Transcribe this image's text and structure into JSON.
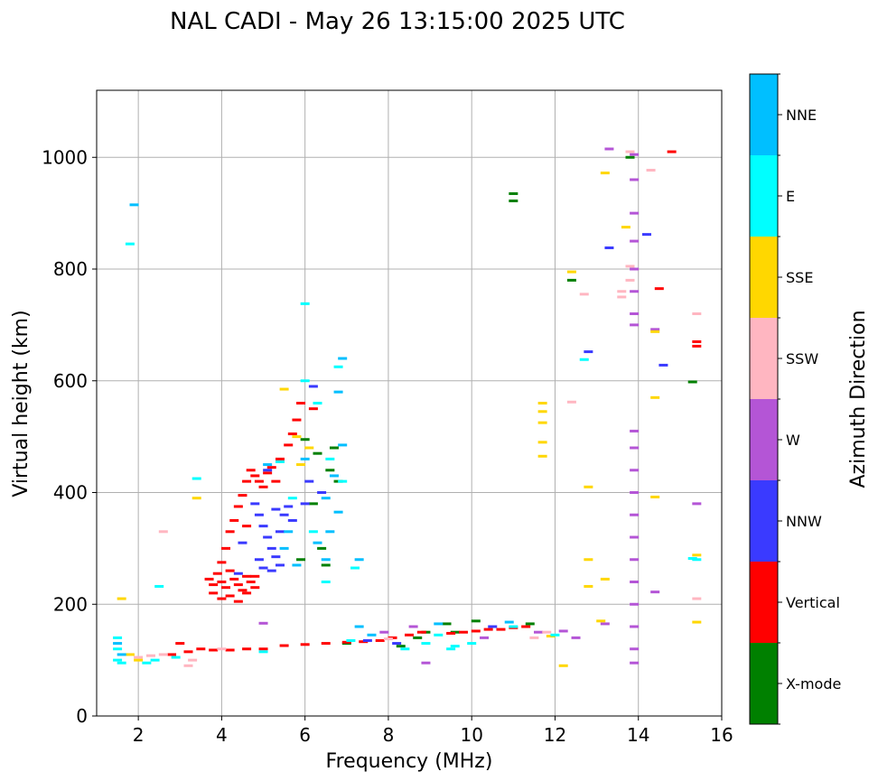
{
  "chart_data": {
    "type": "scatter",
    "title": "NAL CADI - May 26 13:15:00 2025 UTC",
    "xlabel": "Frequency (MHz)",
    "ylabel": "Virtual height (km)",
    "xlim": [
      1,
      16
    ],
    "ylim": [
      0,
      1120
    ],
    "xticks": [
      2,
      4,
      6,
      8,
      10,
      12,
      14,
      16
    ],
    "yticks": [
      0,
      200,
      400,
      600,
      800,
      1000
    ],
    "grid": true,
    "colorbar": {
      "label": "Azimuth Direction",
      "categories": [
        {
          "name": "X-mode",
          "color": "#008000"
        },
        {
          "name": "Vertical",
          "color": "#ff0000"
        },
        {
          "name": "NNW",
          "color": "#3a3aff"
        },
        {
          "name": "W",
          "color": "#b455d6"
        },
        {
          "name": "SSW",
          "color": "#ffb6c1"
        },
        {
          "name": "SSE",
          "color": "#ffd700"
        },
        {
          "name": "E",
          "color": "#00ffff"
        },
        {
          "name": "NNE",
          "color": "#00bfff"
        }
      ]
    },
    "series": [
      {
        "name": "X-mode",
        "points": [
          [
            11.0,
            935
          ],
          [
            11.0,
            922
          ],
          [
            9.4,
            165
          ],
          [
            9.6,
            150
          ],
          [
            12.4,
            780
          ],
          [
            15.3,
            598
          ],
          [
            6.0,
            495
          ],
          [
            6.3,
            470
          ],
          [
            6.6,
            440
          ],
          [
            6.8,
            420
          ],
          [
            6.2,
            380
          ],
          [
            6.4,
            300
          ],
          [
            6.5,
            270
          ],
          [
            5.9,
            280
          ],
          [
            8.7,
            140
          ],
          [
            8.9,
            150
          ],
          [
            7.0,
            130
          ],
          [
            13.8,
            1000
          ],
          [
            6.7,
            480
          ],
          [
            10.1,
            170
          ],
          [
            11.4,
            165
          ],
          [
            8.3,
            125
          ]
        ]
      },
      {
        "name": "Vertical",
        "points": [
          [
            3.7,
            245
          ],
          [
            3.8,
            235
          ],
          [
            3.9,
            255
          ],
          [
            4.0,
            240
          ],
          [
            4.1,
            230
          ],
          [
            4.2,
            260
          ],
          [
            4.3,
            245
          ],
          [
            4.4,
            235
          ],
          [
            4.5,
            225
          ],
          [
            4.6,
            250
          ],
          [
            4.7,
            240
          ],
          [
            3.8,
            220
          ],
          [
            4.0,
            210
          ],
          [
            4.2,
            215
          ],
          [
            4.4,
            205
          ],
          [
            4.6,
            220
          ],
          [
            4.8,
            230
          ],
          [
            4.0,
            275
          ],
          [
            4.1,
            300
          ],
          [
            4.2,
            330
          ],
          [
            4.3,
            350
          ],
          [
            4.4,
            375
          ],
          [
            4.5,
            395
          ],
          [
            4.6,
            420
          ],
          [
            4.7,
            440
          ],
          [
            4.8,
            430
          ],
          [
            4.9,
            420
          ],
          [
            5.0,
            410
          ],
          [
            5.1,
            435
          ],
          [
            5.2,
            445
          ],
          [
            5.3,
            420
          ],
          [
            5.4,
            460
          ],
          [
            5.6,
            485
          ],
          [
            5.7,
            505
          ],
          [
            5.8,
            530
          ],
          [
            5.9,
            560
          ],
          [
            6.2,
            550
          ],
          [
            3.5,
            120
          ],
          [
            3.8,
            118
          ],
          [
            4.2,
            118
          ],
          [
            4.6,
            120
          ],
          [
            5.0,
            120
          ],
          [
            5.5,
            126
          ],
          [
            6.0,
            128
          ],
          [
            6.5,
            130
          ],
          [
            7.0,
            132
          ],
          [
            7.4,
            133
          ],
          [
            7.8,
            135
          ],
          [
            8.1,
            140
          ],
          [
            8.5,
            145
          ],
          [
            8.8,
            150
          ],
          [
            9.5,
            148
          ],
          [
            9.8,
            150
          ],
          [
            10.1,
            152
          ],
          [
            10.4,
            155
          ],
          [
            10.7,
            155
          ],
          [
            11.0,
            158
          ],
          [
            11.3,
            160
          ],
          [
            2.8,
            110
          ],
          [
            3.2,
            115
          ],
          [
            14.5,
            765
          ],
          [
            14.8,
            1010
          ],
          [
            15.4,
            670
          ],
          [
            15.4,
            662
          ],
          [
            3.0,
            130
          ],
          [
            4.8,
            250
          ],
          [
            4.6,
            340
          ]
        ]
      },
      {
        "name": "NNW",
        "points": [
          [
            4.8,
            380
          ],
          [
            4.9,
            360
          ],
          [
            5.0,
            340
          ],
          [
            5.1,
            320
          ],
          [
            5.2,
            300
          ],
          [
            5.3,
            285
          ],
          [
            5.4,
            330
          ],
          [
            5.5,
            360
          ],
          [
            5.6,
            375
          ],
          [
            5.7,
            350
          ],
          [
            4.9,
            280
          ],
          [
            5.0,
            265
          ],
          [
            5.2,
            260
          ],
          [
            5.4,
            270
          ],
          [
            6.2,
            590
          ],
          [
            6.0,
            380
          ],
          [
            6.4,
            400
          ],
          [
            13.3,
            838
          ],
          [
            12.8,
            652
          ],
          [
            14.6,
            628
          ],
          [
            14.2,
            862
          ],
          [
            4.4,
            255
          ],
          [
            4.5,
            310
          ],
          [
            7.5,
            135
          ],
          [
            8.2,
            130
          ],
          [
            10.5,
            160
          ],
          [
            5.1,
            440
          ],
          [
            5.3,
            370
          ],
          [
            6.1,
            420
          ]
        ]
      },
      {
        "name": "W",
        "points": [
          [
            13.9,
            1005
          ],
          [
            13.9,
            960
          ],
          [
            13.9,
            900
          ],
          [
            13.9,
            850
          ],
          [
            13.9,
            800
          ],
          [
            13.9,
            760
          ],
          [
            13.9,
            720
          ],
          [
            13.9,
            700
          ],
          [
            13.9,
            510
          ],
          [
            13.9,
            480
          ],
          [
            13.9,
            440
          ],
          [
            13.9,
            400
          ],
          [
            13.9,
            360
          ],
          [
            13.9,
            320
          ],
          [
            13.9,
            280
          ],
          [
            13.9,
            240
          ],
          [
            13.9,
            200
          ],
          [
            13.9,
            160
          ],
          [
            13.9,
            120
          ],
          [
            13.9,
            95
          ],
          [
            15.4,
            380
          ],
          [
            14.4,
            692
          ],
          [
            14.4,
            222
          ],
          [
            12.5,
            140
          ],
          [
            12.2,
            152
          ],
          [
            13.2,
            165
          ],
          [
            13.3,
            1015
          ],
          [
            8.9,
            95
          ],
          [
            5.0,
            166
          ],
          [
            7.9,
            150
          ],
          [
            8.6,
            160
          ],
          [
            10.3,
            140
          ],
          [
            11.6,
            150
          ]
        ]
      },
      {
        "name": "SSW",
        "points": [
          [
            13.8,
            1010
          ],
          [
            13.8,
            805
          ],
          [
            13.8,
            780
          ],
          [
            13.6,
            760
          ],
          [
            13.6,
            750
          ],
          [
            12.7,
            755
          ],
          [
            12.4,
            562
          ],
          [
            15.4,
            720
          ],
          [
            15.4,
            210
          ],
          [
            14.3,
            977
          ],
          [
            2.6,
            330
          ],
          [
            2.0,
            105
          ],
          [
            2.3,
            108
          ],
          [
            2.6,
            110
          ],
          [
            3.3,
            100
          ],
          [
            3.2,
            90
          ],
          [
            8.0,
            138
          ],
          [
            11.5,
            140
          ],
          [
            11.8,
            150
          ],
          [
            4.0,
            120
          ]
        ]
      },
      {
        "name": "SSE",
        "points": [
          [
            12.4,
            795
          ],
          [
            13.2,
            972
          ],
          [
            13.7,
            875
          ],
          [
            14.4,
            688
          ],
          [
            14.4,
            570
          ],
          [
            14.4,
            392
          ],
          [
            15.4,
            288
          ],
          [
            15.4,
            168
          ],
          [
            12.8,
            410
          ],
          [
            12.8,
            280
          ],
          [
            12.8,
            232
          ],
          [
            13.2,
            245
          ],
          [
            13.1,
            170
          ],
          [
            12.2,
            90
          ],
          [
            11.7,
            560
          ],
          [
            11.7,
            545
          ],
          [
            11.7,
            525
          ],
          [
            11.7,
            490
          ],
          [
            11.7,
            465
          ],
          [
            1.6,
            210
          ],
          [
            1.8,
            110
          ],
          [
            2.0,
            100
          ],
          [
            5.5,
            585
          ],
          [
            5.8,
            500
          ],
          [
            5.9,
            450
          ],
          [
            6.1,
            480
          ],
          [
            3.4,
            390
          ],
          [
            11.9,
            143
          ]
        ]
      },
      {
        "name": "E",
        "points": [
          [
            1.5,
            140
          ],
          [
            1.5,
            120
          ],
          [
            1.5,
            100
          ],
          [
            1.6,
            95
          ],
          [
            2.2,
            95
          ],
          [
            2.4,
            100
          ],
          [
            1.8,
            845
          ],
          [
            6.0,
            738
          ],
          [
            6.8,
            625
          ],
          [
            3.4,
            425
          ],
          [
            2.5,
            232
          ],
          [
            6.0,
            600
          ],
          [
            6.3,
            560
          ],
          [
            6.6,
            460
          ],
          [
            6.9,
            420
          ],
          [
            6.2,
            330
          ],
          [
            7.2,
            265
          ],
          [
            6.5,
            240
          ],
          [
            12.7,
            638
          ],
          [
            15.4,
            280
          ],
          [
            15.3,
            282
          ],
          [
            8.4,
            120
          ],
          [
            8.9,
            130
          ],
          [
            9.5,
            120
          ],
          [
            10.0,
            130
          ],
          [
            11.0,
            160
          ],
          [
            12.0,
            145
          ],
          [
            5.4,
            455
          ],
          [
            5.7,
            390
          ],
          [
            7.1,
            135
          ],
          [
            2.9,
            105
          ],
          [
            5.0,
            115
          ],
          [
            9.2,
            145
          ],
          [
            9.6,
            125
          ]
        ]
      },
      {
        "name": "NNE",
        "points": [
          [
            1.5,
            130
          ],
          [
            1.6,
            110
          ],
          [
            1.9,
            915
          ],
          [
            6.8,
            580
          ],
          [
            6.9,
            485
          ],
          [
            6.7,
            430
          ],
          [
            6.5,
            390
          ],
          [
            6.8,
            365
          ],
          [
            6.6,
            330
          ],
          [
            6.5,
            280
          ],
          [
            6.3,
            310
          ],
          [
            7.3,
            160
          ],
          [
            7.6,
            145
          ],
          [
            9.2,
            165
          ],
          [
            10.9,
            168
          ],
          [
            5.6,
            330
          ],
          [
            5.5,
            300
          ],
          [
            6.9,
            640
          ],
          [
            5.1,
            450
          ],
          [
            5.8,
            270
          ],
          [
            7.3,
            280
          ],
          [
            6.0,
            460
          ]
        ]
      }
    ]
  }
}
